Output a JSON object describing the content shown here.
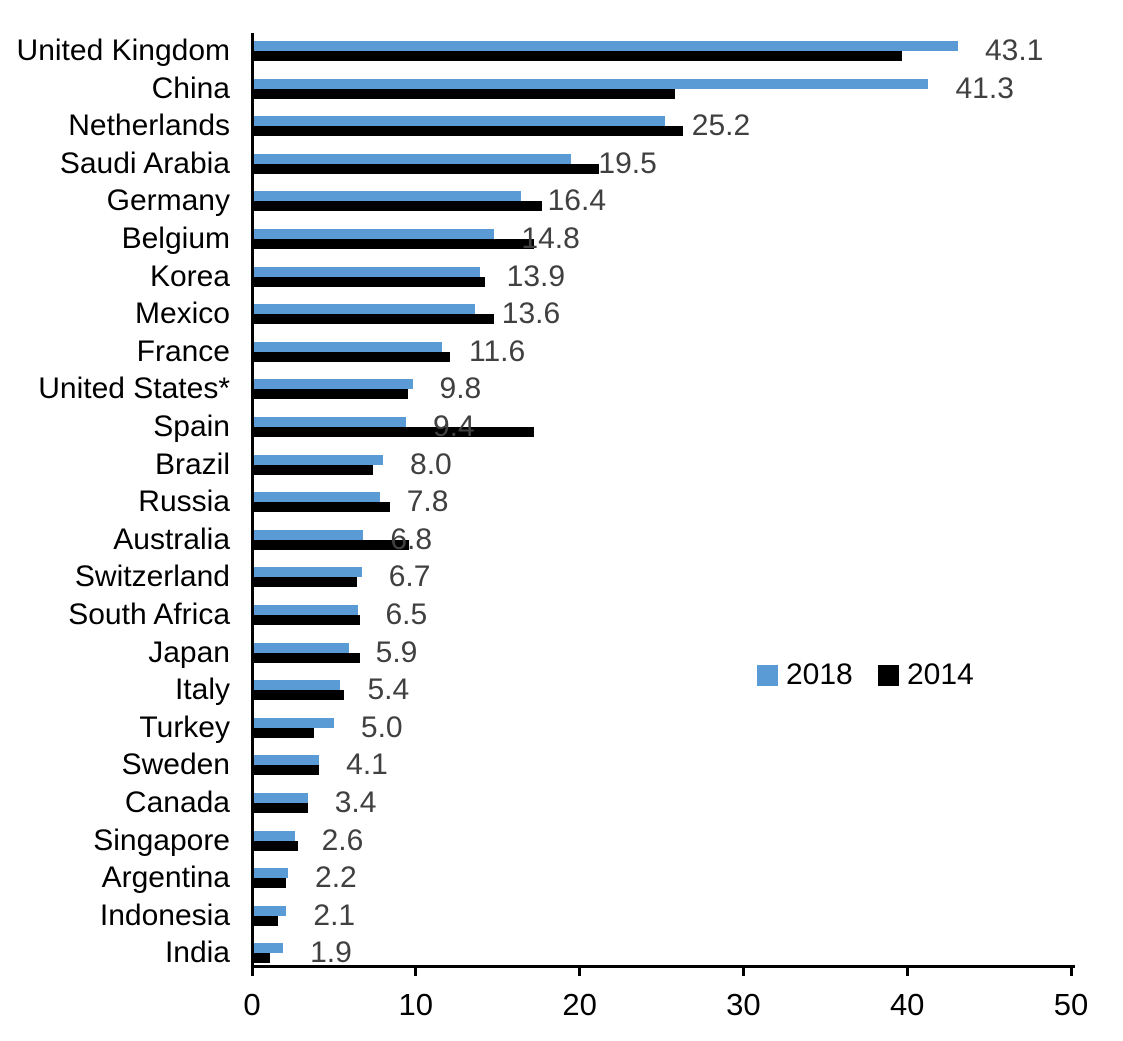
{
  "chart_data": {
    "type": "bar",
    "orientation": "horizontal",
    "title": "",
    "xlabel": "",
    "ylabel": "",
    "xlim": [
      0,
      50
    ],
    "x_ticks": [
      "0",
      "10",
      "20",
      "30",
      "40",
      "50"
    ],
    "grid": false,
    "legend_position": "middle-right",
    "categories": [
      "United Kingdom",
      "China",
      "Netherlands",
      "Saudi Arabia",
      "Germany",
      "Belgium",
      "Korea",
      "Mexico",
      "France",
      "United States*",
      "Spain",
      "Brazil",
      "Russia",
      "Australia",
      "Switzerland",
      "South Africa",
      "Japan",
      "Italy",
      "Turkey",
      "Sweden",
      "Canada",
      "Singapore",
      "Argentina",
      "Indonesia",
      "India"
    ],
    "series": [
      {
        "name": "2018",
        "color": "#5B9BD5",
        "values": [
          43.1,
          41.3,
          25.2,
          19.5,
          16.4,
          14.8,
          13.9,
          13.6,
          11.6,
          9.8,
          9.4,
          8.0,
          7.8,
          6.8,
          6.7,
          6.5,
          5.9,
          5.4,
          5.0,
          4.1,
          3.4,
          2.6,
          2.2,
          2.1,
          1.9
        ],
        "data_labels": [
          "43.1",
          "41.3",
          "25.2",
          "19.5",
          "16.4",
          "14.8",
          "13.9",
          "13.6",
          "11.6",
          "9.8",
          "9.4",
          "8.0",
          "7.8",
          "6.8",
          "6.7",
          "6.5",
          "5.9",
          "5.4",
          "5.0",
          "4.1",
          "3.4",
          "2.6",
          "2.2",
          "2.1",
          "1.9"
        ]
      },
      {
        "name": "2014",
        "color": "#000000",
        "values": [
          39.7,
          25.8,
          26.3,
          21.2,
          17.7,
          17.2,
          14.2,
          14.8,
          12.1,
          9.5,
          17.2,
          7.4,
          8.4,
          9.6,
          6.4,
          6.6,
          6.6,
          5.6,
          3.8,
          4.1,
          3.4,
          2.8,
          2.1,
          1.6,
          1.1
        ]
      }
    ]
  },
  "colors": {
    "background": "#FFFFFF",
    "axis": "#000000",
    "value_label": "#404040",
    "category_label": "#000000",
    "bar_2018": "#5B9BD5",
    "bar_2014": "#000000"
  }
}
